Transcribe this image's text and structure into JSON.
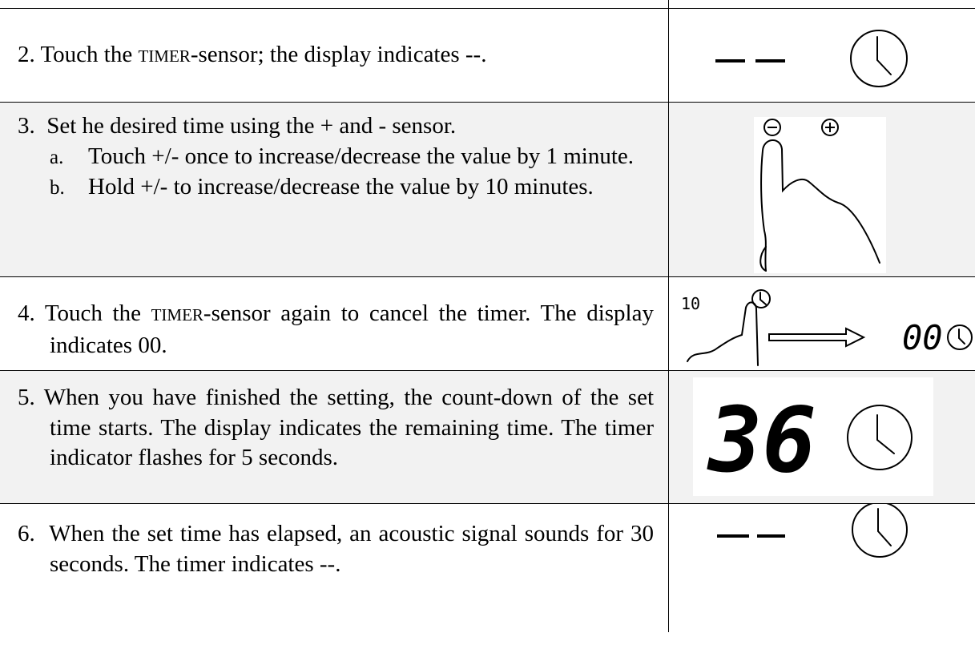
{
  "rows": [
    {
      "step": "2.",
      "before": "Touch the ",
      "keyword": "TIMER",
      "after": "-sensor; the display indicates --."
    },
    {
      "step": "3.",
      "text": "Set he desired time using the + and - sensor.",
      "items": [
        {
          "label": "a.",
          "text": "Touch +/- once to increase/decrease the value by 1 minute."
        },
        {
          "label": "b.",
          "text": "Hold +/- to increase/decrease the value by 10 minutes."
        }
      ]
    },
    {
      "step": "4.",
      "before": "Touch the ",
      "keyword": "TIMER",
      "after": "-sensor again to cancel the timer. The display indicates 00.",
      "display_from": "10",
      "display_to": "00"
    },
    {
      "step": "5.",
      "text": "When you have finished the setting, the count-down of the set time starts. The display indicates the remaining time. The timer indicator flashes for 5 seconds.",
      "display": "36"
    },
    {
      "step": "6.",
      "text": "When the set time has elapsed, an acoustic signal sounds for 30 seconds. The timer indicates --."
    }
  ]
}
